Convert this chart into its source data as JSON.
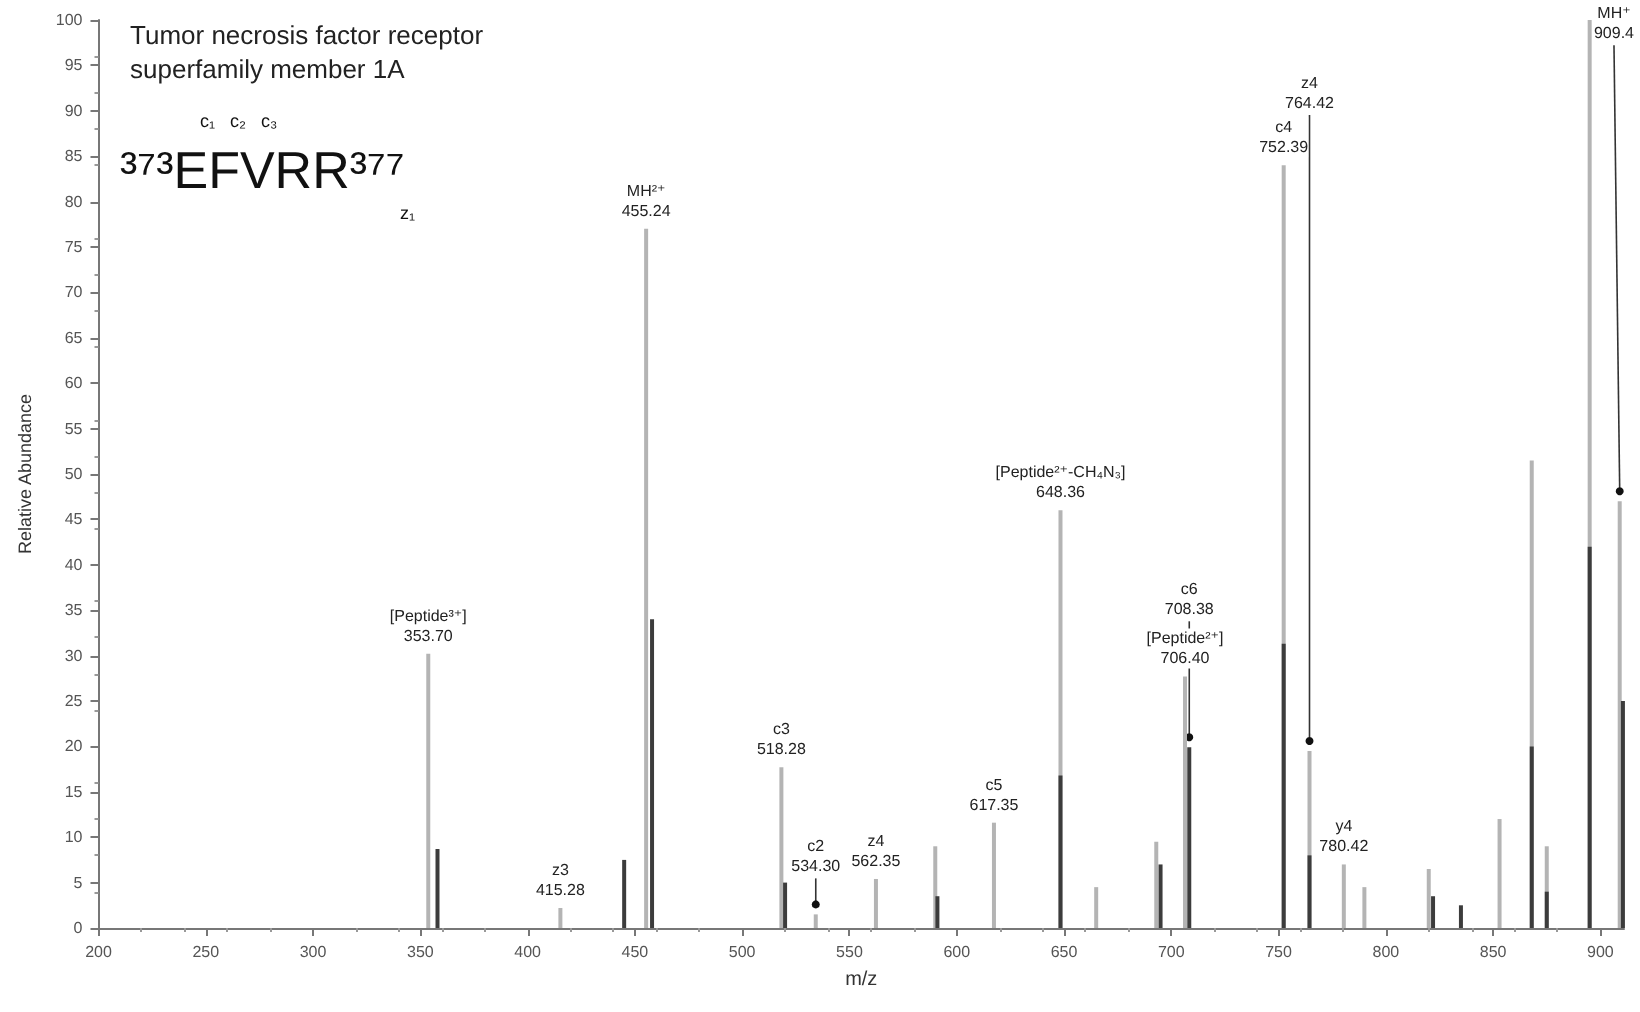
{
  "chart_data": {
    "type": "bar",
    "title": "Tumor necrosis factor receptor superfamily member 1A",
    "xlabel": "m/z",
    "ylabel": "Relative Abundance",
    "xlim": [
      200,
      911
    ],
    "xticks": [
      200,
      250,
      300,
      350,
      400,
      450,
      500,
      550,
      600,
      650,
      700,
      750,
      800,
      850,
      900
    ],
    "ylim": [
      0,
      100
    ],
    "yticks": [
      0,
      5,
      10,
      15,
      20,
      25,
      30,
      35,
      40,
      45,
      50,
      55,
      60,
      65,
      70,
      75,
      80,
      85,
      90,
      95,
      100
    ],
    "grid": false,
    "series": [
      {
        "color": "#b4b4b4",
        "x": [
          353.7,
          415.28,
          455.24,
          518.28,
          534.3,
          562.35,
          590,
          617.35,
          648.36,
          665,
          693,
          706.4,
          752.39,
          764.42,
          780.42,
          790,
          820,
          853,
          868,
          875,
          895,
          909
        ],
        "values": [
          30.2,
          2.2,
          77,
          17.7,
          1.5,
          5.4,
          9,
          11.6,
          46,
          4.5,
          9.5,
          27.7,
          84,
          19.5,
          7,
          4.5,
          6.5,
          12,
          51.5,
          9,
          100,
          47
        ]
      },
      {
        "color": "#3c3c3c",
        "x": [
          358,
          445,
          458,
          520,
          591,
          648.36,
          695,
          708.38,
          752.39,
          764.42,
          822,
          835,
          868,
          875,
          895,
          910.5
        ],
        "values": [
          8.7,
          7.5,
          34,
          5,
          3.5,
          16.8,
          7,
          19.9,
          31.3,
          8,
          3.5,
          2.5,
          20,
          4,
          42,
          25
        ]
      }
    ],
    "annotations": [
      "³⁷³EFVRR³⁷⁷",
      "c₁   c₂   c₃",
      "z₁",
      {
        "text": "[Peptide³⁺]\n353.70",
        "x": 353.7,
        "y": 30.2
      },
      {
        "text": "z3\n415.28",
        "x": 415.28,
        "y": 2.2
      },
      {
        "text": "MH²⁺\n455.24",
        "x": 455.24,
        "y": 77
      },
      {
        "text": "c3\n518.28",
        "x": 518.28,
        "y": 17.7
      },
      {
        "text": "c2\n534.30",
        "x": 534.3,
        "y": 1.5
      },
      {
        "text": "z4\n562.35",
        "x": 562.35,
        "y": 5.4
      },
      {
        "text": "c5\n617.35",
        "x": 617.35,
        "y": 11.6
      },
      {
        "text": "[Peptide²⁺-CH₄N₃]\n648.36",
        "x": 648.36,
        "y": 46
      },
      {
        "text": "[Peptide²⁺]\n706.40",
        "x": 706.4,
        "y": 27.7
      },
      {
        "text": "c6\n708.38",
        "x": 708.38,
        "y": 19.9
      },
      {
        "text": "c4\n752.39",
        "x": 752.39,
        "y": 84
      },
      {
        "text": "z4\n764.42",
        "x": 764.42,
        "y": 19.5
      },
      {
        "text": "y4\n780.42",
        "x": 780.42,
        "y": 7
      },
      {
        "text": "MH⁺\n909.4",
        "x": 909,
        "y": 47
      }
    ]
  }
}
